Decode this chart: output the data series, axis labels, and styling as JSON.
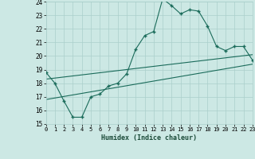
{
  "xlabel": "Humidex (Indice chaleur)",
  "bg_color": "#cce8e4",
  "grid_color": "#aacfcb",
  "line_color": "#1a6b5a",
  "x_min": 0,
  "x_max": 23,
  "y_min": 15,
  "y_max": 24,
  "x_ticks": [
    0,
    1,
    2,
    3,
    4,
    5,
    6,
    7,
    8,
    9,
    10,
    11,
    12,
    13,
    14,
    15,
    16,
    17,
    18,
    19,
    20,
    21,
    22,
    23
  ],
  "y_ticks": [
    15,
    16,
    17,
    18,
    19,
    20,
    21,
    22,
    23,
    24
  ],
  "humidex_curve_x": [
    0,
    1,
    2,
    3,
    4,
    5,
    6,
    7,
    8,
    9,
    10,
    11,
    12,
    13,
    14,
    15,
    16,
    17,
    18,
    19,
    20,
    21,
    22,
    23
  ],
  "humidex_curve_y": [
    18.8,
    18.0,
    16.7,
    15.5,
    15.5,
    17.0,
    17.2,
    17.8,
    18.0,
    18.7,
    20.5,
    21.5,
    21.8,
    24.2,
    23.7,
    23.1,
    23.4,
    23.3,
    22.2,
    20.7,
    20.4,
    20.7,
    20.7,
    19.7
  ],
  "line1_x": [
    0,
    23
  ],
  "line1_y": [
    18.3,
    20.1
  ],
  "line2_x": [
    0,
    23
  ],
  "line2_y": [
    16.8,
    19.4
  ]
}
